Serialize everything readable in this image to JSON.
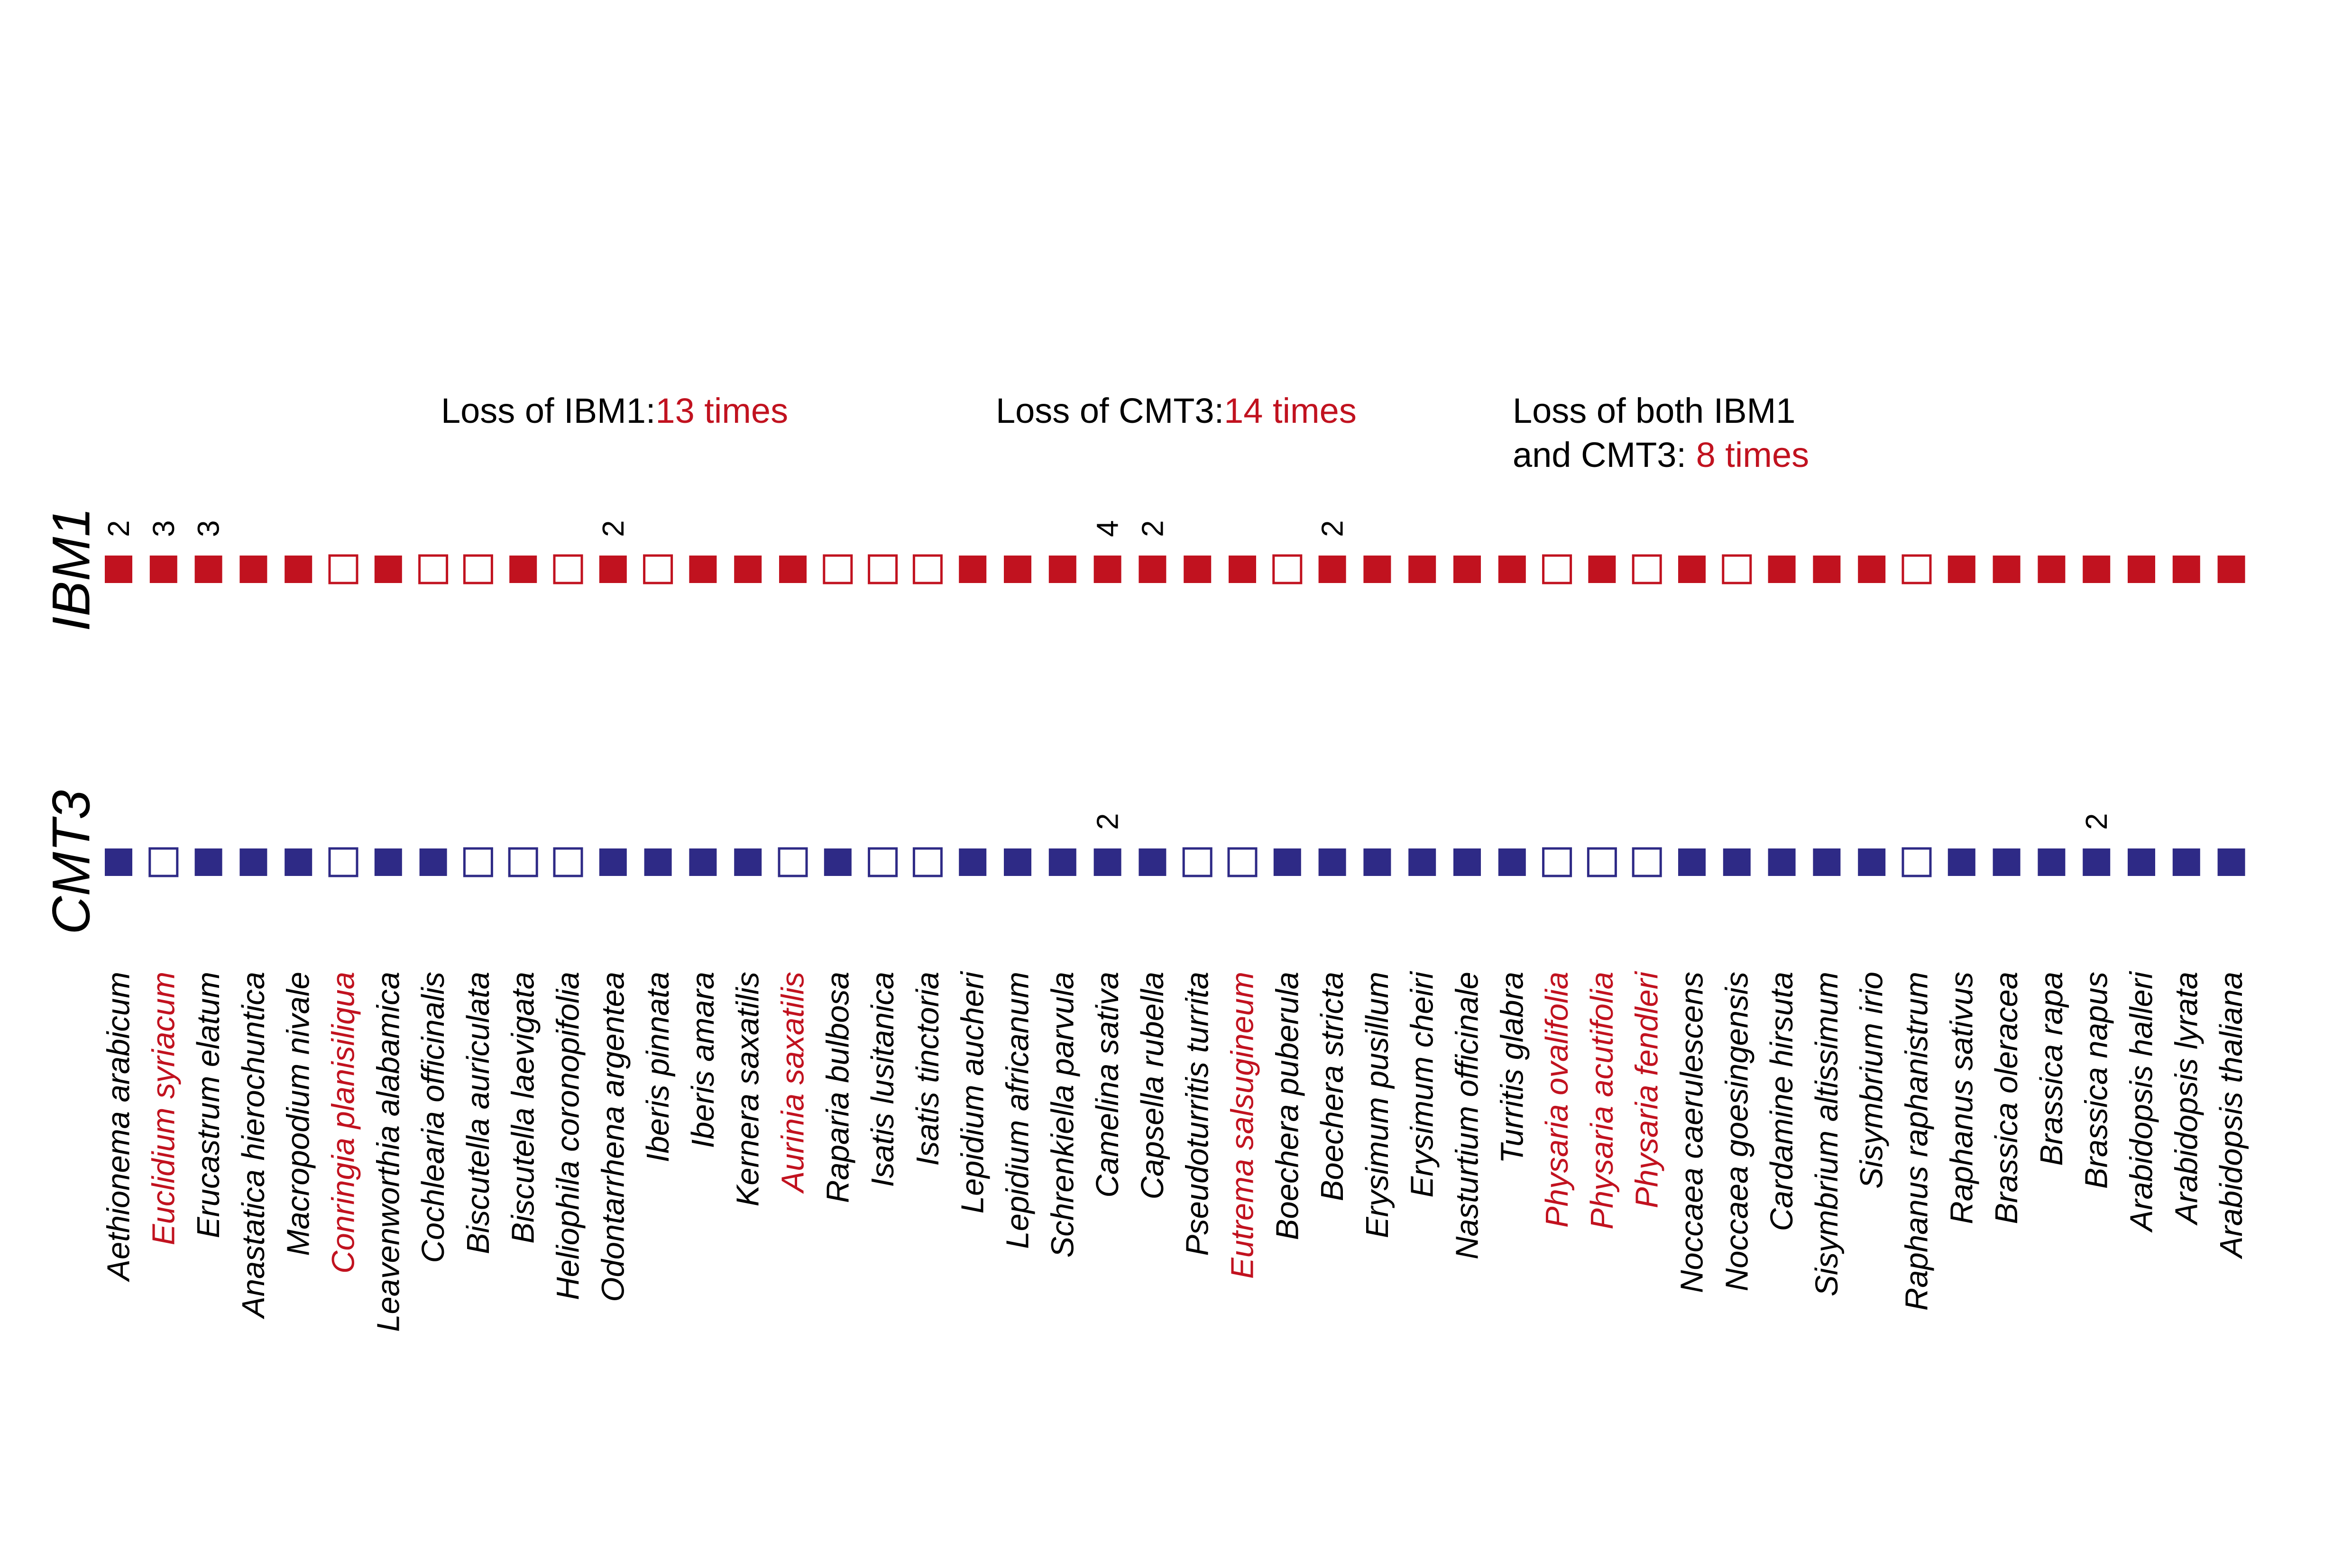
{
  "colors": {
    "ibm1": "#c1121f",
    "cmt3": "#2e2a86",
    "highlight": "#c1121f",
    "text": "#000000"
  },
  "annotations": [
    {
      "lines": [
        {
          "black": "Loss of IBM1:",
          "red": "13 times"
        }
      ]
    },
    {
      "lines": [
        {
          "black": "Loss of CMT3:",
          "red": "14 times"
        }
      ]
    },
    {
      "lines": [
        {
          "black": "Loss of both IBM1",
          "red": ""
        },
        {
          "black": "and CMT3: ",
          "red": "8 times"
        }
      ]
    }
  ],
  "rows": [
    {
      "label": "IBM1",
      "color_key": "ibm1"
    },
    {
      "label": "CMT3",
      "color_key": "cmt3"
    }
  ],
  "species": [
    {
      "name": "Aethionema arabicum",
      "highlight": false,
      "ibm1": "present",
      "ibm1_count": "2",
      "cmt3": "present",
      "cmt3_count": ""
    },
    {
      "name": "Euclidium syriacum",
      "highlight": true,
      "ibm1": "present",
      "ibm1_count": "3",
      "cmt3": "absent",
      "cmt3_count": ""
    },
    {
      "name": "Erucastrum elatum",
      "highlight": false,
      "ibm1": "present",
      "ibm1_count": "3",
      "cmt3": "present",
      "cmt3_count": ""
    },
    {
      "name": "Anastatica hierochuntica",
      "highlight": false,
      "ibm1": "present",
      "ibm1_count": "",
      "cmt3": "present",
      "cmt3_count": ""
    },
    {
      "name": "Macropodium nivale",
      "highlight": false,
      "ibm1": "present",
      "ibm1_count": "",
      "cmt3": "present",
      "cmt3_count": ""
    },
    {
      "name": "Conringia planisiliqua",
      "highlight": true,
      "ibm1": "absent",
      "ibm1_count": "",
      "cmt3": "absent",
      "cmt3_count": ""
    },
    {
      "name": "Leavenworthia alabamica",
      "highlight": false,
      "ibm1": "present",
      "ibm1_count": "",
      "cmt3": "present",
      "cmt3_count": ""
    },
    {
      "name": "Cochlearia officinalis",
      "highlight": false,
      "ibm1": "absent",
      "ibm1_count": "",
      "cmt3": "present",
      "cmt3_count": ""
    },
    {
      "name": "Biscutella auriculata",
      "highlight": false,
      "ibm1": "absent",
      "ibm1_count": "",
      "cmt3": "absent",
      "cmt3_count": ""
    },
    {
      "name": "Biscutella laevigata",
      "highlight": false,
      "ibm1": "present",
      "ibm1_count": "",
      "cmt3": "absent",
      "cmt3_count": ""
    },
    {
      "name": "Heliophila coronopifolia",
      "highlight": false,
      "ibm1": "absent",
      "ibm1_count": "",
      "cmt3": "absent",
      "cmt3_count": ""
    },
    {
      "name": "Odontarrhena argentea",
      "highlight": false,
      "ibm1": "present",
      "ibm1_count": "2",
      "cmt3": "present",
      "cmt3_count": ""
    },
    {
      "name": "Iberis pinnata",
      "highlight": false,
      "ibm1": "absent",
      "ibm1_count": "",
      "cmt3": "present",
      "cmt3_count": ""
    },
    {
      "name": "Iberis amara",
      "highlight": false,
      "ibm1": "present",
      "ibm1_count": "",
      "cmt3": "present",
      "cmt3_count": ""
    },
    {
      "name": "Kernera saxatilis",
      "highlight": false,
      "ibm1": "present",
      "ibm1_count": "",
      "cmt3": "present",
      "cmt3_count": ""
    },
    {
      "name": "Aurinia saxatilis",
      "highlight": true,
      "ibm1": "present",
      "ibm1_count": "",
      "cmt3": "absent",
      "cmt3_count": ""
    },
    {
      "name": "Raparia bulbosa",
      "highlight": false,
      "ibm1": "absent",
      "ibm1_count": "",
      "cmt3": "present",
      "cmt3_count": ""
    },
    {
      "name": "Isatis lusitanica",
      "highlight": false,
      "ibm1": "absent",
      "ibm1_count": "",
      "cmt3": "absent",
      "cmt3_count": ""
    },
    {
      "name": "Isatis tinctoria",
      "highlight": false,
      "ibm1": "absent",
      "ibm1_count": "",
      "cmt3": "absent",
      "cmt3_count": ""
    },
    {
      "name": "Lepidium aucheri",
      "highlight": false,
      "ibm1": "present",
      "ibm1_count": "",
      "cmt3": "present",
      "cmt3_count": ""
    },
    {
      "name": "Lepidium africanum",
      "highlight": false,
      "ibm1": "present",
      "ibm1_count": "",
      "cmt3": "present",
      "cmt3_count": ""
    },
    {
      "name": "Schrenkiella parvula",
      "highlight": false,
      "ibm1": "present",
      "ibm1_count": "",
      "cmt3": "present",
      "cmt3_count": ""
    },
    {
      "name": "Camelina sativa",
      "highlight": false,
      "ibm1": "present",
      "ibm1_count": "4",
      "cmt3": "present",
      "cmt3_count": "2"
    },
    {
      "name": "Capsella rubella",
      "highlight": false,
      "ibm1": "present",
      "ibm1_count": "2",
      "cmt3": "present",
      "cmt3_count": ""
    },
    {
      "name": "Pseudoturritis turrita",
      "highlight": false,
      "ibm1": "present",
      "ibm1_count": "",
      "cmt3": "absent",
      "cmt3_count": ""
    },
    {
      "name": "Eutrema salsugineum",
      "highlight": true,
      "ibm1": "present",
      "ibm1_count": "",
      "cmt3": "absent",
      "cmt3_count": ""
    },
    {
      "name": "Boechera puberula",
      "highlight": false,
      "ibm1": "absent",
      "ibm1_count": "",
      "cmt3": "present",
      "cmt3_count": ""
    },
    {
      "name": "Boechera stricta",
      "highlight": false,
      "ibm1": "present",
      "ibm1_count": "2",
      "cmt3": "present",
      "cmt3_count": ""
    },
    {
      "name": "Erysimum pusillum",
      "highlight": false,
      "ibm1": "present",
      "ibm1_count": "",
      "cmt3": "present",
      "cmt3_count": ""
    },
    {
      "name": "Erysimum cheiri",
      "highlight": false,
      "ibm1": "present",
      "ibm1_count": "",
      "cmt3": "present",
      "cmt3_count": ""
    },
    {
      "name": "Nasturtium officinale",
      "highlight": false,
      "ibm1": "present",
      "ibm1_count": "",
      "cmt3": "present",
      "cmt3_count": ""
    },
    {
      "name": "Turritis glabra",
      "highlight": false,
      "ibm1": "present",
      "ibm1_count": "",
      "cmt3": "present",
      "cmt3_count": ""
    },
    {
      "name": "Physaria ovalifolia",
      "highlight": true,
      "ibm1": "absent",
      "ibm1_count": "",
      "cmt3": "absent",
      "cmt3_count": ""
    },
    {
      "name": "Physaria acutifolia",
      "highlight": true,
      "ibm1": "present",
      "ibm1_count": "",
      "cmt3": "absent",
      "cmt3_count": ""
    },
    {
      "name": "Physaria fendleri",
      "highlight": true,
      "ibm1": "absent",
      "ibm1_count": "",
      "cmt3": "absent",
      "cmt3_count": ""
    },
    {
      "name": "Noccaea caerulescens",
      "highlight": false,
      "ibm1": "present",
      "ibm1_count": "",
      "cmt3": "present",
      "cmt3_count": ""
    },
    {
      "name": "Noccaea goesingensis",
      "highlight": false,
      "ibm1": "absent",
      "ibm1_count": "",
      "cmt3": "present",
      "cmt3_count": ""
    },
    {
      "name": "Cardamine hirsuta",
      "highlight": false,
      "ibm1": "present",
      "ibm1_count": "",
      "cmt3": "present",
      "cmt3_count": ""
    },
    {
      "name": "Sisymbrium altissimum",
      "highlight": false,
      "ibm1": "present",
      "ibm1_count": "",
      "cmt3": "present",
      "cmt3_count": ""
    },
    {
      "name": "Sisymbrium irio",
      "highlight": false,
      "ibm1": "present",
      "ibm1_count": "",
      "cmt3": "present",
      "cmt3_count": ""
    },
    {
      "name": "Raphanus raphanistrum",
      "highlight": false,
      "ibm1": "absent",
      "ibm1_count": "",
      "cmt3": "absent",
      "cmt3_count": ""
    },
    {
      "name": "Raphanus sativus",
      "highlight": false,
      "ibm1": "present",
      "ibm1_count": "",
      "cmt3": "present",
      "cmt3_count": ""
    },
    {
      "name": "Brassica oleracea",
      "highlight": false,
      "ibm1": "present",
      "ibm1_count": "",
      "cmt3": "present",
      "cmt3_count": ""
    },
    {
      "name": "Brassica rapa",
      "highlight": false,
      "ibm1": "present",
      "ibm1_count": "",
      "cmt3": "present",
      "cmt3_count": ""
    },
    {
      "name": "Brassica napus",
      "highlight": false,
      "ibm1": "present",
      "ibm1_count": "",
      "cmt3": "present",
      "cmt3_count": "2"
    },
    {
      "name": "Arabidopsis halleri",
      "highlight": false,
      "ibm1": "present",
      "ibm1_count": "",
      "cmt3": "present",
      "cmt3_count": ""
    },
    {
      "name": "Arabidopsis lyrata",
      "highlight": false,
      "ibm1": "present",
      "ibm1_count": "",
      "cmt3": "present",
      "cmt3_count": ""
    },
    {
      "name": "Arabidopsis thaliana",
      "highlight": false,
      "ibm1": "present",
      "ibm1_count": "",
      "cmt3": "present",
      "cmt3_count": ""
    }
  ]
}
